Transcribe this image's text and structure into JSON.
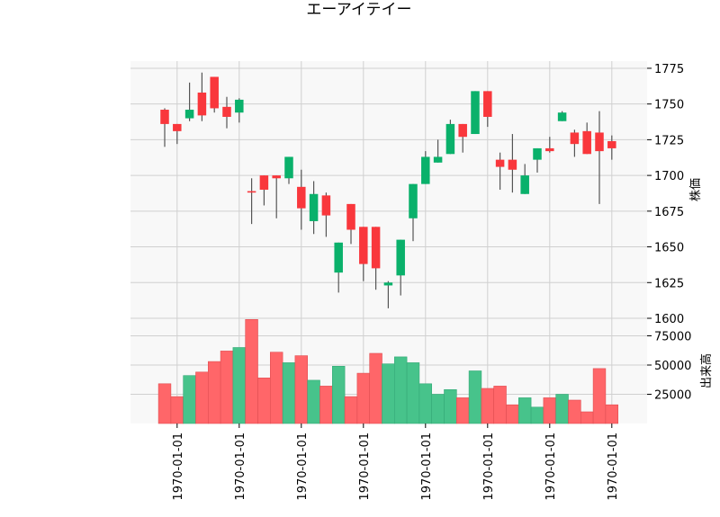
{
  "chart_data": {
    "type": "candlestick",
    "title": "エーアイテイー",
    "price_panel": {
      "ylabel": "株価",
      "ylim": [
        1600,
        1780
      ],
      "yticks": [
        1600,
        1625,
        1650,
        1675,
        1700,
        1725,
        1750,
        1775
      ],
      "grid": true
    },
    "volume_panel": {
      "ylabel": "出来高",
      "ylim": [
        0,
        90000
      ],
      "yticks": [
        25000,
        50000,
        75000
      ],
      "grid": true
    },
    "x_tick_labels": [
      "1970-01-01",
      "1970-01-01",
      "1970-01-01",
      "1970-01-01",
      "1970-01-01",
      "1970-01-01",
      "1970-01-01",
      "1970-01-01"
    ],
    "x_tick_positions": [
      1,
      6,
      11,
      16,
      21,
      26,
      31,
      36
    ],
    "colors": {
      "up": "#0ab16b",
      "down": "#f9373c",
      "up_volume": "#47c38b",
      "down_volume": "#ff6669",
      "wick": "#555555",
      "grid": "#d0d0d0",
      "panel_bg": "#f8f8f8"
    },
    "candles": [
      {
        "o": 1746,
        "h": 1747,
        "l": 1720,
        "c": 1736,
        "v": 34000
      },
      {
        "o": 1736,
        "h": 1736,
        "l": 1722,
        "c": 1731,
        "v": 23000
      },
      {
        "o": 1740,
        "h": 1765,
        "l": 1738,
        "c": 1746,
        "v": 41000
      },
      {
        "o": 1758,
        "h": 1772,
        "l": 1738,
        "c": 1742,
        "v": 44000
      },
      {
        "o": 1769,
        "h": 1769,
        "l": 1744,
        "c": 1747,
        "v": 53000
      },
      {
        "o": 1748,
        "h": 1755,
        "l": 1733,
        "c": 1741,
        "v": 62000
      },
      {
        "o": 1744,
        "h": 1754,
        "l": 1737,
        "c": 1753,
        "v": 65000
      },
      {
        "o": 1689,
        "h": 1698,
        "l": 1666,
        "c": 1688,
        "v": 89000
      },
      {
        "o": 1700,
        "h": 1700,
        "l": 1679,
        "c": 1690,
        "v": 39000
      },
      {
        "o": 1700,
        "h": 1700,
        "l": 1670,
        "c": 1698,
        "v": 61000
      },
      {
        "o": 1698,
        "h": 1713,
        "l": 1694,
        "c": 1713,
        "v": 52000
      },
      {
        "o": 1692,
        "h": 1704,
        "l": 1662,
        "c": 1677,
        "v": 58000
      },
      {
        "o": 1668,
        "h": 1696,
        "l": 1659,
        "c": 1687,
        "v": 37000
      },
      {
        "o": 1686,
        "h": 1688,
        "l": 1657,
        "c": 1672,
        "v": 32000
      },
      {
        "o": 1632,
        "h": 1653,
        "l": 1618,
        "c": 1653,
        "v": 49000
      },
      {
        "o": 1680,
        "h": 1680,
        "l": 1652,
        "c": 1662,
        "v": 23000
      },
      {
        "o": 1664,
        "h": 1664,
        "l": 1626,
        "c": 1638,
        "v": 43000
      },
      {
        "o": 1664,
        "h": 1664,
        "l": 1620,
        "c": 1635,
        "v": 60000
      },
      {
        "o": 1623,
        "h": 1626,
        "l": 1607,
        "c": 1625,
        "v": 51000
      },
      {
        "o": 1630,
        "h": 1655,
        "l": 1616,
        "c": 1655,
        "v": 57000
      },
      {
        "o": 1670,
        "h": 1694,
        "l": 1654,
        "c": 1694,
        "v": 52000
      },
      {
        "o": 1694,
        "h": 1717,
        "l": 1694,
        "c": 1713,
        "v": 34000
      },
      {
        "o": 1709,
        "h": 1725,
        "l": 1709,
        "c": 1713,
        "v": 25000
      },
      {
        "o": 1715,
        "h": 1739,
        "l": 1715,
        "c": 1736,
        "v": 29000
      },
      {
        "o": 1736,
        "h": 1736,
        "l": 1716,
        "c": 1727,
        "v": 22000
      },
      {
        "o": 1729,
        "h": 1759,
        "l": 1729,
        "c": 1759,
        "v": 45000
      },
      {
        "o": 1759,
        "h": 1759,
        "l": 1734,
        "c": 1741,
        "v": 30000
      },
      {
        "o": 1711,
        "h": 1716,
        "l": 1690,
        "c": 1706,
        "v": 32000
      },
      {
        "o": 1711,
        "h": 1729,
        "l": 1688,
        "c": 1704,
        "v": 16000
      },
      {
        "o": 1687,
        "h": 1708,
        "l": 1687,
        "c": 1700,
        "v": 22000
      },
      {
        "o": 1711,
        "h": 1719,
        "l": 1702,
        "c": 1719,
        "v": 14000
      },
      {
        "o": 1719,
        "h": 1727,
        "l": 1716,
        "c": 1717,
        "v": 22000
      },
      {
        "o": 1738,
        "h": 1745,
        "l": 1738,
        "c": 1744,
        "v": 25000
      },
      {
        "o": 1730,
        "h": 1732,
        "l": 1713,
        "c": 1722,
        "v": 20000
      },
      {
        "o": 1731,
        "h": 1737,
        "l": 1715,
        "c": 1715,
        "v": 10000
      },
      {
        "o": 1730,
        "h": 1745,
        "l": 1680,
        "c": 1717,
        "v": 47000
      },
      {
        "o": 1724,
        "h": 1728,
        "l": 1711,
        "c": 1719,
        "v": 16000
      }
    ]
  }
}
